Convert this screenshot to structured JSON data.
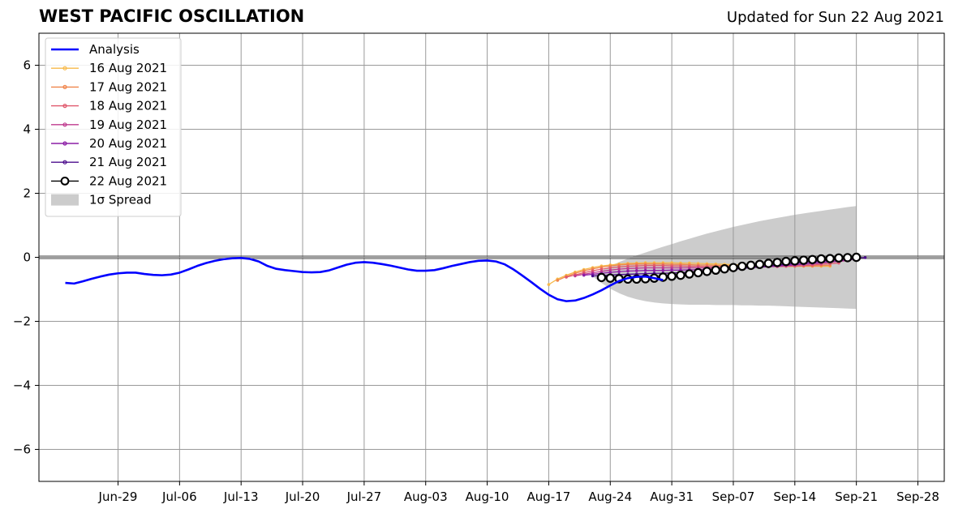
{
  "header": {
    "title": "WEST PACIFIC OSCILLATION",
    "updated": "Updated for Sun 22 Aug 2021"
  },
  "chart_data": {
    "type": "line",
    "title": "WEST PACIFIC OSCILLATION",
    "xlabel": "",
    "ylabel": "",
    "x_range": [
      "2021-06-20",
      "2021-10-01"
    ],
    "ylim": [
      -7,
      7
    ],
    "y_ticks": [
      -6,
      -4,
      -2,
      0,
      2,
      4,
      6
    ],
    "y_tick_labels": [
      "−6",
      "−4",
      "−2",
      "0",
      "2",
      "4",
      "6"
    ],
    "x_ticks": [
      "2021-06-29",
      "2021-07-06",
      "2021-07-13",
      "2021-07-20",
      "2021-07-27",
      "2021-08-03",
      "2021-08-10",
      "2021-08-17",
      "2021-08-24",
      "2021-08-31",
      "2021-09-07",
      "2021-09-14",
      "2021-09-21",
      "2021-09-28"
    ],
    "x_tick_labels": [
      "Jun-29",
      "Jul-06",
      "Jul-13",
      "Jul-20",
      "Jul-27",
      "Aug-03",
      "Aug-10",
      "Aug-17",
      "Aug-24",
      "Aug-31",
      "Sep-07",
      "Sep-14",
      "Sep-21",
      "Sep-28"
    ],
    "grid": true,
    "legend_position": "top-left",
    "zero_line": 0,
    "analysis": {
      "name": "Analysis",
      "color": "#0000ff",
      "start": "2021-06-23",
      "values": [
        -0.8,
        -0.82,
        -0.75,
        -0.67,
        -0.6,
        -0.54,
        -0.5,
        -0.48,
        -0.48,
        -0.52,
        -0.55,
        -0.56,
        -0.54,
        -0.48,
        -0.38,
        -0.27,
        -0.18,
        -0.11,
        -0.06,
        -0.03,
        -0.02,
        -0.05,
        -0.13,
        -0.27,
        -0.36,
        -0.4,
        -0.43,
        -0.46,
        -0.47,
        -0.46,
        -0.41,
        -0.32,
        -0.23,
        -0.17,
        -0.15,
        -0.17,
        -0.21,
        -0.26,
        -0.32,
        -0.38,
        -0.42,
        -0.42,
        -0.4,
        -0.34,
        -0.27,
        -0.21,
        -0.15,
        -0.11,
        -0.1,
        -0.13,
        -0.22,
        -0.38,
        -0.57,
        -0.77,
        -0.98,
        -1.17,
        -1.31,
        -1.37,
        -1.35,
        -1.27,
        -1.16,
        -1.03,
        -0.88,
        -0.74,
        -0.65,
        -0.61,
        -0.6,
        -0.65,
        -0.71
      ]
    },
    "forecasts": [
      {
        "name": "16 Aug 2021",
        "color": "#f7b94a",
        "start": "2021-08-17",
        "values": [
          -0.85,
          -0.68,
          -0.56,
          -0.46,
          -0.38,
          -0.32,
          -0.27,
          -0.24,
          -0.21,
          -0.19,
          -0.18,
          -0.17,
          -0.17,
          -0.17,
          -0.17,
          -0.18,
          -0.18,
          -0.19,
          -0.2,
          -0.21,
          -0.22,
          -0.23,
          -0.24,
          -0.25,
          -0.26,
          -0.27,
          -0.27,
          -0.28,
          -0.28,
          -0.28,
          -0.28,
          -0.28,
          -0.28
        ]
      },
      {
        "name": "17 Aug 2021",
        "color": "#f0854c",
        "start": "2021-08-18",
        "values": [
          -0.72,
          -0.6,
          -0.5,
          -0.42,
          -0.36,
          -0.31,
          -0.27,
          -0.24,
          -0.22,
          -0.21,
          -0.21,
          -0.21,
          -0.21,
          -0.22,
          -0.22,
          -0.23,
          -0.24,
          -0.24,
          -0.25,
          -0.26,
          -0.26,
          -0.27,
          -0.27,
          -0.28,
          -0.28,
          -0.28,
          -0.28,
          -0.28,
          -0.27,
          -0.27,
          -0.26,
          -0.25
        ]
      },
      {
        "name": "18 Aug 2021",
        "color": "#e0586c",
        "start": "2021-08-19",
        "values": [
          -0.62,
          -0.55,
          -0.48,
          -0.42,
          -0.37,
          -0.33,
          -0.3,
          -0.28,
          -0.27,
          -0.26,
          -0.26,
          -0.26,
          -0.27,
          -0.27,
          -0.28,
          -0.28,
          -0.29,
          -0.29,
          -0.29,
          -0.3,
          -0.3,
          -0.3,
          -0.3,
          -0.29,
          -0.29,
          -0.28,
          -0.27,
          -0.26,
          -0.24,
          -0.22,
          -0.2,
          -0.18
        ]
      },
      {
        "name": "19 Aug 2021",
        "color": "#bf3a8e",
        "start": "2021-08-20",
        "values": [
          -0.58,
          -0.53,
          -0.48,
          -0.44,
          -0.4,
          -0.37,
          -0.35,
          -0.34,
          -0.33,
          -0.33,
          -0.33,
          -0.33,
          -0.33,
          -0.33,
          -0.33,
          -0.33,
          -0.33,
          -0.33,
          -0.32,
          -0.32,
          -0.31,
          -0.3,
          -0.29,
          -0.28,
          -0.26,
          -0.24,
          -0.22,
          -0.2,
          -0.18,
          -0.15,
          -0.13,
          -0.1
        ]
      },
      {
        "name": "20 Aug 2021",
        "color": "#8c1ea6",
        "start": "2021-08-21",
        "values": [
          -0.56,
          -0.53,
          -0.5,
          -0.47,
          -0.45,
          -0.43,
          -0.42,
          -0.41,
          -0.41,
          -0.41,
          -0.4,
          -0.4,
          -0.39,
          -0.39,
          -0.38,
          -0.37,
          -0.36,
          -0.35,
          -0.34,
          -0.32,
          -0.31,
          -0.29,
          -0.27,
          -0.25,
          -0.23,
          -0.21,
          -0.18,
          -0.16,
          -0.13,
          -0.11,
          -0.08,
          -0.06
        ]
      },
      {
        "name": "21 Aug 2021",
        "color": "#4b0c8c",
        "start": "2021-08-22",
        "values": [
          -0.58,
          -0.57,
          -0.55,
          -0.54,
          -0.53,
          -0.52,
          -0.51,
          -0.5,
          -0.5,
          -0.49,
          -0.48,
          -0.46,
          -0.45,
          -0.43,
          -0.41,
          -0.39,
          -0.37,
          -0.35,
          -0.32,
          -0.3,
          -0.27,
          -0.24,
          -0.22,
          -0.19,
          -0.16,
          -0.14,
          -0.11,
          -0.09,
          -0.06,
          -0.04,
          -0.02,
          -0.01
        ]
      },
      {
        "name": "22 Aug 2021",
        "color": "#000000",
        "start": "2021-08-23",
        "values": [
          -0.63,
          -0.65,
          -0.67,
          -0.68,
          -0.68,
          -0.67,
          -0.65,
          -0.62,
          -0.59,
          -0.56,
          -0.52,
          -0.48,
          -0.44,
          -0.4,
          -0.36,
          -0.32,
          -0.28,
          -0.25,
          -0.22,
          -0.19,
          -0.16,
          -0.13,
          -0.11,
          -0.09,
          -0.07,
          -0.05,
          -0.04,
          -0.02,
          -0.01,
          0.0
        ]
      }
    ],
    "spread": {
      "name": "1σ Spread",
      "color": "#cccccc",
      "start": "2021-08-22",
      "upper": [
        -0.6,
        -0.42,
        -0.27,
        -0.15,
        -0.04,
        0.06,
        0.15,
        0.24,
        0.33,
        0.41,
        0.5,
        0.58,
        0.66,
        0.74,
        0.81,
        0.88,
        0.95,
        1.01,
        1.07,
        1.13,
        1.18,
        1.23,
        1.28,
        1.33,
        1.37,
        1.41,
        1.45,
        1.49,
        1.53,
        1.57,
        1.6
      ],
      "lower": [
        -0.6,
        -0.8,
        -0.98,
        -1.12,
        -1.23,
        -1.31,
        -1.37,
        -1.41,
        -1.44,
        -1.46,
        -1.47,
        -1.48,
        -1.48,
        -1.48,
        -1.49,
        -1.49,
        -1.49,
        -1.5,
        -1.5,
        -1.51,
        -1.51,
        -1.52,
        -1.53,
        -1.54,
        -1.55,
        -1.56,
        -1.57,
        -1.58,
        -1.59,
        -1.6,
        -1.61
      ]
    }
  }
}
